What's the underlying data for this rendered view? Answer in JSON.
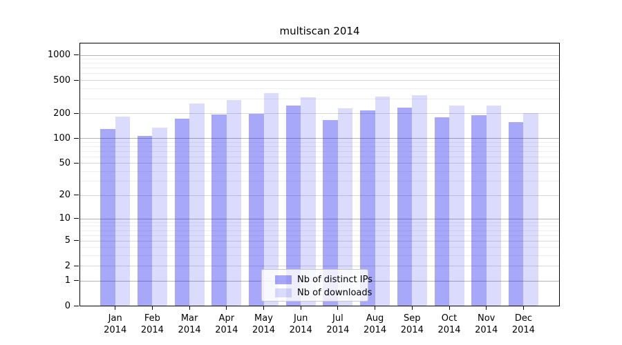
{
  "figure": {
    "title": "multiscan 2014",
    "background": "#ffffff"
  },
  "chart_data": {
    "type": "bar",
    "title": "multiscan 2014",
    "categories": [
      "Jan",
      "Feb",
      "Mar",
      "Apr",
      "May",
      "Jun",
      "Jul",
      "Aug",
      "Sep",
      "Oct",
      "Nov",
      "Dec"
    ],
    "year_label": "2014",
    "series": [
      {
        "name": "Nb of distinct IPs",
        "color": "rgba(0,0,240,0.34)",
        "values": [
          130,
          107,
          172,
          192,
          196,
          245,
          164,
          217,
          234,
          180,
          189,
          155
        ]
      },
      {
        "name": "Nb of downloads",
        "color": "rgba(0,0,240,0.14)",
        "values": [
          181,
          135,
          264,
          290,
          346,
          310,
          230,
          316,
          327,
          245,
          249,
          200
        ]
      }
    ],
    "yscale": "log1p",
    "ylim": [
      0,
      1370
    ],
    "y_major_ticks": [
      0,
      1,
      2,
      5,
      10,
      20,
      50,
      100,
      200,
      500,
      1000
    ],
    "y_minor_ticks": [
      3,
      4,
      6,
      7,
      8,
      9,
      30,
      40,
      60,
      70,
      80,
      90,
      300,
      400,
      600,
      700,
      800,
      900
    ],
    "grid": "horizontal major and minor",
    "legend_position": "inside bottom-center"
  },
  "legend": {
    "entries": [
      "Nb of distinct IPs",
      "Nb of downloads"
    ]
  },
  "colors": {
    "bar_distinct_ips": "rgba(0,0,240,0.34)",
    "bar_downloads": "rgba(0,0,240,0.14)",
    "grid_decade": "#b3b3b3",
    "grid_major": "#d8d8d8",
    "grid_minor": "#eeeeee",
    "spine": "#000000",
    "background": "#ffffff"
  }
}
